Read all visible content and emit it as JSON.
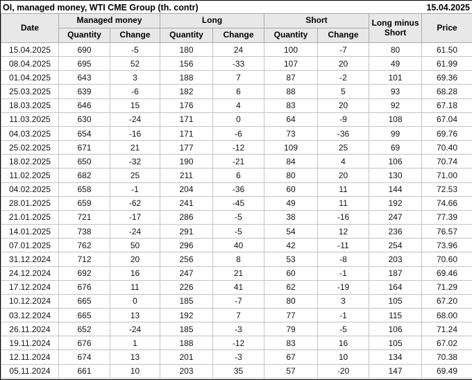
{
  "header": {
    "title": "OI, managed money, WTI CME Group (th. contr)",
    "date": "15.04.2025"
  },
  "colors": {
    "positive": "#008000",
    "negative": "#cc0000",
    "header_bg": "#e8e8e8",
    "cell_border": "#c3c3c3",
    "header_border": "#a9a9a9",
    "frame_border": "#000000"
  },
  "table": {
    "headers": {
      "date": "Date",
      "managed_money": "Managed money",
      "long": "Long",
      "short": "Short",
      "long_minus_short": "Long minus Short",
      "price": "Price",
      "quantity": "Quantity",
      "change": "Change"
    },
    "rows": [
      [
        "15.04.2025",
        "690",
        [
          "-5",
          "neg"
        ],
        "180",
        [
          "24",
          "pos"
        ],
        "100",
        [
          "-7",
          "neg"
        ],
        "80",
        "61.50"
      ],
      [
        "08.04.2025",
        "695",
        [
          "52",
          "pos"
        ],
        "156",
        [
          "-33",
          "neg"
        ],
        "107",
        [
          "20",
          "pos"
        ],
        "49",
        "61.99"
      ],
      [
        "01.04.2025",
        "643",
        [
          "3",
          "pos"
        ],
        "188",
        [
          "7",
          "pos"
        ],
        "87",
        [
          "-2",
          "neg"
        ],
        "101",
        "69.36"
      ],
      [
        "25.03.2025",
        "639",
        [
          "-6",
          "neg"
        ],
        "182",
        [
          "6",
          "pos"
        ],
        "88",
        [
          "5",
          "pos"
        ],
        "93",
        "68.28"
      ],
      [
        "18.03.2025",
        "646",
        [
          "15",
          "pos"
        ],
        "176",
        [
          "4",
          "pos"
        ],
        "83",
        [
          "20",
          "pos"
        ],
        "92",
        "67.18"
      ],
      [
        "11.03.2025",
        "630",
        [
          "-24",
          "neg"
        ],
        "171",
        [
          "0",
          "neg"
        ],
        "64",
        [
          "-9",
          "neg"
        ],
        "108",
        "67.04"
      ],
      [
        "04.03.2025",
        "654",
        [
          "-16",
          "neg"
        ],
        "171",
        [
          "-6",
          "neg"
        ],
        "73",
        [
          "-36",
          "neg"
        ],
        "99",
        "69.76"
      ],
      [
        "25.02.2025",
        "671",
        [
          "21",
          "pos"
        ],
        "177",
        [
          "-12",
          "neg"
        ],
        "109",
        [
          "25",
          "pos"
        ],
        "69",
        "70.40"
      ],
      [
        "18.02.2025",
        "650",
        [
          "-32",
          "neg"
        ],
        "190",
        [
          "-21",
          "neg"
        ],
        "84",
        [
          "4",
          "pos"
        ],
        "106",
        "70.74"
      ],
      [
        "11.02.2025",
        "682",
        [
          "25",
          "pos"
        ],
        "211",
        [
          "6",
          "pos"
        ],
        "80",
        [
          "20",
          "pos"
        ],
        "130",
        "71.00"
      ],
      [
        "04.02.2025",
        "658",
        [
          "-1",
          "neg"
        ],
        "204",
        [
          "-36",
          "neg"
        ],
        "60",
        [
          "11",
          "pos"
        ],
        "144",
        "72.53"
      ],
      [
        "28.01.2025",
        "659",
        [
          "-62",
          "neg"
        ],
        "241",
        [
          "-45",
          "neg"
        ],
        "49",
        [
          "11",
          "pos"
        ],
        "192",
        "74.66"
      ],
      [
        "21.01.2025",
        "721",
        [
          "-17",
          "neg"
        ],
        "286",
        [
          "-5",
          "neg"
        ],
        "38",
        [
          "-16",
          "neg"
        ],
        "247",
        "77.39"
      ],
      [
        "14.01.2025",
        "738",
        [
          "-24",
          "neg"
        ],
        "291",
        [
          "-5",
          "neg"
        ],
        "54",
        [
          "12",
          "pos"
        ],
        "236",
        "76.57"
      ],
      [
        "07.01.2025",
        "762",
        [
          "50",
          "pos"
        ],
        "296",
        [
          "40",
          "pos"
        ],
        "42",
        [
          "-11",
          "neg"
        ],
        "254",
        "73.96"
      ],
      [
        "31.12.2024",
        "712",
        [
          "20",
          "pos"
        ],
        "256",
        [
          "8",
          "pos"
        ],
        "53",
        [
          "-8",
          "neg"
        ],
        "203",
        "70.60"
      ],
      [
        "24.12.2024",
        "692",
        [
          "16",
          "pos"
        ],
        "247",
        [
          "21",
          "pos"
        ],
        "60",
        [
          "-1",
          "neg"
        ],
        "187",
        "69.46"
      ],
      [
        "17.12.2024",
        "676",
        [
          "11",
          "pos"
        ],
        "226",
        [
          "41",
          "pos"
        ],
        "62",
        [
          "-19",
          "neg"
        ],
        "164",
        "71.29"
      ],
      [
        "10.12.2024",
        "665",
        [
          "0",
          "pos"
        ],
        "185",
        [
          "-7",
          "neg"
        ],
        "80",
        [
          "3",
          "pos"
        ],
        "105",
        "67.20"
      ],
      [
        "03.12.2024",
        "665",
        [
          "13",
          "pos"
        ],
        "192",
        [
          "7",
          "pos"
        ],
        "77",
        [
          "-1",
          "neg"
        ],
        "115",
        "68.00"
      ],
      [
        "26.11.2024",
        "652",
        [
          "-24",
          "neg"
        ],
        "185",
        [
          "-3",
          "neg"
        ],
        "79",
        [
          "-5",
          "neg"
        ],
        "106",
        "71.24"
      ],
      [
        "19.11.2024",
        "676",
        [
          "1",
          "pos"
        ],
        "188",
        [
          "-12",
          "neg"
        ],
        "83",
        [
          "16",
          "pos"
        ],
        "105",
        "67.02"
      ],
      [
        "12.11.2024",
        "674",
        [
          "13",
          "pos"
        ],
        "201",
        [
          "-3",
          "neg"
        ],
        "67",
        [
          "10",
          "pos"
        ],
        "134",
        "70.38"
      ],
      [
        "05.11.2024",
        "661",
        [
          "10",
          "pos"
        ],
        "203",
        [
          "35",
          "pos"
        ],
        "57",
        [
          "-20",
          "neg"
        ],
        "147",
        "69.49"
      ]
    ]
  }
}
